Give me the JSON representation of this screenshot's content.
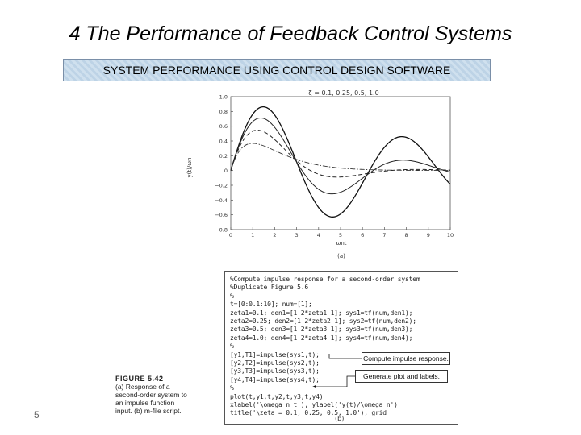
{
  "slide": {
    "title": "4 The Performance of  Feedback Control Systems",
    "banner": "SYSTEM PERFORMANCE USING CONTROL DESIGN SOFTWARE",
    "page_number": "5"
  },
  "chart_data": {
    "type": "line",
    "title": "ζ = 0.1, 0.25, 0.5, 1.0",
    "xlabel": "ωnt",
    "ylabel": "y(t)/ωn",
    "panel_label": "(a)",
    "xlim": [
      0,
      10
    ],
    "ylim": [
      -0.8,
      1.0
    ],
    "x_ticks": [
      "0",
      "1",
      "2",
      "3",
      "4",
      "5",
      "6",
      "7",
      "8",
      "9",
      "10"
    ],
    "y_ticks": [
      "1.0",
      "0.8",
      "0.6",
      "0.4",
      "0.2",
      "0",
      "−0.2",
      "−0.4",
      "−0.6",
      "−0.8"
    ],
    "series": [
      {
        "zeta": 0.1,
        "style": "solid",
        "width": 1.3,
        "color": "#111111"
      },
      {
        "zeta": 0.25,
        "style": "solid",
        "width": 1.0,
        "color": "#222222"
      },
      {
        "zeta": 0.5,
        "style": "dashed",
        "width": 1.0,
        "color": "#222222"
      },
      {
        "zeta": 1.0,
        "style": "dashdot",
        "width": 0.9,
        "color": "#333333"
      }
    ]
  },
  "code": {
    "lines": [
      "%Compute impulse response for a second-order system",
      "%Duplicate Figure 5.6",
      "%",
      "t=[0:0.1:10]; num=[1];",
      "zeta1=0.1; den1=[1 2*zeta1 1]; sys1=tf(num,den1);",
      "zeta2=0.25; den2=[1 2*zeta2 1]; sys2=tf(num,den2);",
      "zeta3=0.5; den3=[1 2*zeta3 1]; sys3=tf(num,den3);",
      "zeta4=1.0; den4=[1 2*zeta4 1]; sys4=tf(num,den4);",
      "%",
      "[y1,T1]=impulse(sys1,t);",
      "[y2,T2]=impulse(sys2,t);",
      "[y3,T3]=impulse(sys3,t);",
      "[y4,T4]=impulse(sys4,t);",
      "%",
      "plot(t,y1,t,y2,t,y3,t,y4)",
      "xlabel('\\omega_n t'), ylabel('y(t)/\\omega_n')",
      "title('\\zeta = 0.1, 0.25, 0.5, 1.0'), grid"
    ],
    "annotation_impulse": "Compute impulse response.",
    "annotation_plot": "Generate plot and labels.",
    "panel_label": "(b)"
  },
  "caption": {
    "figure_label": "FIGURE 5.42",
    "text": "(a) Response of a second-order system to an impulse function input. (b) m-file script."
  }
}
